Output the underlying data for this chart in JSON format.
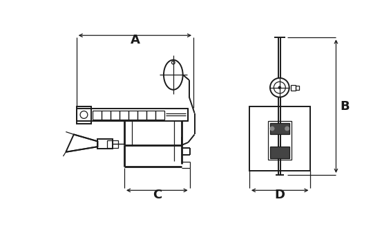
{
  "bg_color": "#ffffff",
  "line_color": "#1a1a1a",
  "fig_width": 5.66,
  "fig_height": 3.37,
  "dpi": 100,
  "label_A": "A",
  "label_B": "B",
  "label_C": "C",
  "label_D": "D"
}
